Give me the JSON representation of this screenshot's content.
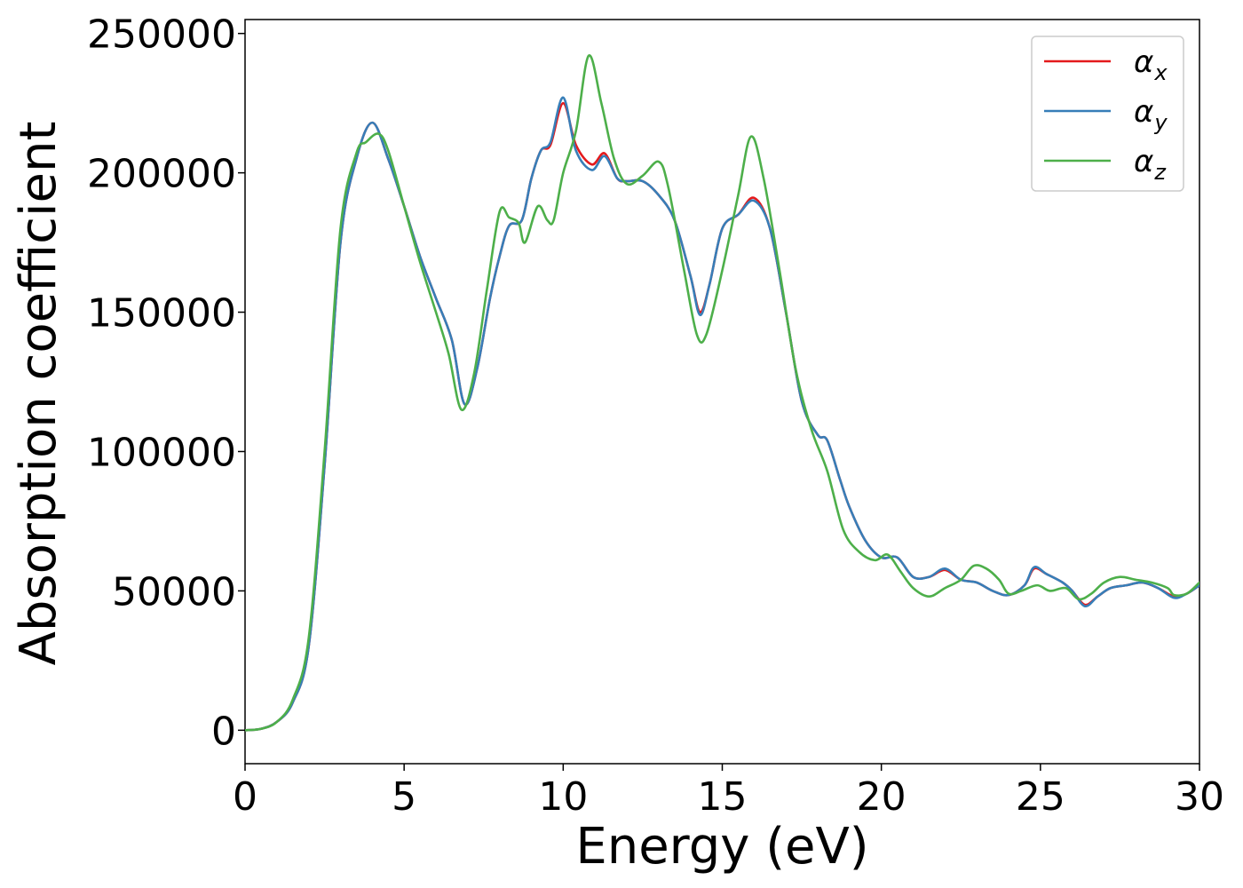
{
  "chart_data": {
    "type": "line",
    "xlabel": "Energy (eV)",
    "ylabel": "Absorption coefficient",
    "xlim": [
      0,
      30
    ],
    "ylim": [
      -12000,
      255000
    ],
    "xticks": [
      0,
      5,
      10,
      15,
      20,
      25,
      30
    ],
    "yticks": [
      0,
      50000,
      100000,
      150000,
      200000,
      250000
    ],
    "grid": false,
    "legend_position": "top-right",
    "series": [
      {
        "name": "α",
        "subscript": "x",
        "color": "#e41a1c",
        "points": [
          [
            0,
            0
          ],
          [
            0.5,
            500
          ],
          [
            1.0,
            3000
          ],
          [
            1.5,
            10000
          ],
          [
            2.0,
            30000
          ],
          [
            2.5,
            95000
          ],
          [
            3.0,
            175000
          ],
          [
            3.5,
            205000
          ],
          [
            4.0,
            218000
          ],
          [
            4.5,
            205000
          ],
          [
            5.0,
            188000
          ],
          [
            5.5,
            170000
          ],
          [
            6.0,
            155000
          ],
          [
            6.5,
            140000
          ],
          [
            6.9,
            117000
          ],
          [
            7.3,
            130000
          ],
          [
            7.7,
            155000
          ],
          [
            8.0,
            170000
          ],
          [
            8.3,
            181000
          ],
          [
            8.7,
            183000
          ],
          [
            9.0,
            198000
          ],
          [
            9.3,
            208000
          ],
          [
            9.6,
            210000
          ],
          [
            10.0,
            225000
          ],
          [
            10.4,
            210000
          ],
          [
            10.9,
            203000
          ],
          [
            11.3,
            207000
          ],
          [
            11.7,
            198000
          ],
          [
            12.0,
            197000
          ],
          [
            12.5,
            197000
          ],
          [
            13.0,
            192000
          ],
          [
            13.5,
            183000
          ],
          [
            14.0,
            163000
          ],
          [
            14.3,
            150000
          ],
          [
            14.6,
            160000
          ],
          [
            15.0,
            180000
          ],
          [
            15.5,
            185000
          ],
          [
            16.0,
            191000
          ],
          [
            16.5,
            180000
          ],
          [
            17.0,
            150000
          ],
          [
            17.5,
            118000
          ],
          [
            18.0,
            106000
          ],
          [
            18.3,
            104000
          ],
          [
            18.7,
            90000
          ],
          [
            19.0,
            80000
          ],
          [
            19.5,
            68000
          ],
          [
            20.0,
            62000
          ],
          [
            20.5,
            62000
          ],
          [
            21.0,
            55000
          ],
          [
            21.5,
            55000
          ],
          [
            22.0,
            57500
          ],
          [
            22.5,
            54000
          ],
          [
            23.0,
            53000
          ],
          [
            23.5,
            50000
          ],
          [
            24.0,
            48500
          ],
          [
            24.5,
            52000
          ],
          [
            24.8,
            58000
          ],
          [
            25.2,
            56000
          ],
          [
            25.7,
            53000
          ],
          [
            26.0,
            50000
          ],
          [
            26.4,
            45000
          ],
          [
            26.8,
            48000
          ],
          [
            27.2,
            51000
          ],
          [
            27.7,
            52000
          ],
          [
            28.2,
            53000
          ],
          [
            28.7,
            51000
          ],
          [
            29.2,
            48000
          ],
          [
            29.6,
            49000
          ],
          [
            30.0,
            52000
          ]
        ]
      },
      {
        "name": "α",
        "subscript": "y",
        "color": "#377eb8",
        "points": [
          [
            0,
            0
          ],
          [
            0.5,
            500
          ],
          [
            1.0,
            3000
          ],
          [
            1.5,
            10000
          ],
          [
            2.0,
            30000
          ],
          [
            2.5,
            95000
          ],
          [
            3.0,
            175000
          ],
          [
            3.5,
            205000
          ],
          [
            4.0,
            218000
          ],
          [
            4.5,
            205000
          ],
          [
            5.0,
            188000
          ],
          [
            5.5,
            170000
          ],
          [
            6.0,
            155000
          ],
          [
            6.5,
            140000
          ],
          [
            6.9,
            117000
          ],
          [
            7.3,
            130000
          ],
          [
            7.7,
            155000
          ],
          [
            8.0,
            170000
          ],
          [
            8.3,
            181000
          ],
          [
            8.7,
            183000
          ],
          [
            9.0,
            198000
          ],
          [
            9.3,
            208000
          ],
          [
            9.6,
            211000
          ],
          [
            10.0,
            227000
          ],
          [
            10.4,
            208000
          ],
          [
            10.9,
            201000
          ],
          [
            11.3,
            206000
          ],
          [
            11.7,
            198000
          ],
          [
            12.0,
            197000
          ],
          [
            12.5,
            197000
          ],
          [
            13.0,
            192000
          ],
          [
            13.5,
            183000
          ],
          [
            14.0,
            163000
          ],
          [
            14.3,
            149000
          ],
          [
            14.6,
            160000
          ],
          [
            15.0,
            180000
          ],
          [
            15.5,
            185000
          ],
          [
            16.0,
            190000
          ],
          [
            16.5,
            180000
          ],
          [
            17.0,
            150000
          ],
          [
            17.5,
            118000
          ],
          [
            18.0,
            106000
          ],
          [
            18.3,
            104000
          ],
          [
            18.7,
            90000
          ],
          [
            19.0,
            80000
          ],
          [
            19.5,
            68000
          ],
          [
            20.0,
            62000
          ],
          [
            20.5,
            62000
          ],
          [
            21.0,
            55000
          ],
          [
            21.5,
            55000
          ],
          [
            22.0,
            58000
          ],
          [
            22.5,
            54000
          ],
          [
            23.0,
            53000
          ],
          [
            23.5,
            50000
          ],
          [
            24.0,
            48500
          ],
          [
            24.5,
            52000
          ],
          [
            24.8,
            58500
          ],
          [
            25.2,
            56000
          ],
          [
            25.7,
            53000
          ],
          [
            26.0,
            50000
          ],
          [
            26.4,
            44500
          ],
          [
            26.8,
            48000
          ],
          [
            27.2,
            51000
          ],
          [
            27.7,
            52000
          ],
          [
            28.2,
            53000
          ],
          [
            28.7,
            51000
          ],
          [
            29.2,
            47500
          ],
          [
            29.6,
            49000
          ],
          [
            30.0,
            52000
          ]
        ]
      },
      {
        "name": "α",
        "subscript": "z",
        "color": "#4daf4a",
        "points": [
          [
            0,
            0
          ],
          [
            0.5,
            500
          ],
          [
            1.0,
            3000
          ],
          [
            1.5,
            11000
          ],
          [
            2.0,
            33000
          ],
          [
            2.5,
            100000
          ],
          [
            3.0,
            180000
          ],
          [
            3.5,
            207000
          ],
          [
            3.8,
            211000
          ],
          [
            4.2,
            214000
          ],
          [
            4.5,
            208000
          ],
          [
            5.0,
            188000
          ],
          [
            5.5,
            168000
          ],
          [
            6.0,
            150000
          ],
          [
            6.4,
            135000
          ],
          [
            6.8,
            115000
          ],
          [
            7.2,
            128000
          ],
          [
            7.6,
            158000
          ],
          [
            8.0,
            186000
          ],
          [
            8.3,
            184000
          ],
          [
            8.6,
            182000
          ],
          [
            8.8,
            175000
          ],
          [
            9.2,
            188000
          ],
          [
            9.5,
            183000
          ],
          [
            9.7,
            183000
          ],
          [
            10.0,
            200000
          ],
          [
            10.4,
            215000
          ],
          [
            10.8,
            242000
          ],
          [
            11.2,
            225000
          ],
          [
            11.6,
            205000
          ],
          [
            12.0,
            196000
          ],
          [
            12.5,
            199000
          ],
          [
            13.0,
            204000
          ],
          [
            13.3,
            195000
          ],
          [
            13.8,
            165000
          ],
          [
            14.2,
            142000
          ],
          [
            14.5,
            142000
          ],
          [
            15.0,
            165000
          ],
          [
            15.5,
            192000
          ],
          [
            15.9,
            213000
          ],
          [
            16.3,
            198000
          ],
          [
            16.8,
            165000
          ],
          [
            17.3,
            130000
          ],
          [
            17.8,
            108000
          ],
          [
            18.3,
            93000
          ],
          [
            18.8,
            72000
          ],
          [
            19.3,
            64000
          ],
          [
            19.8,
            61000
          ],
          [
            20.2,
            63000
          ],
          [
            20.6,
            57000
          ],
          [
            21.0,
            51000
          ],
          [
            21.5,
            48000
          ],
          [
            22.0,
            51000
          ],
          [
            22.5,
            54000
          ],
          [
            22.9,
            59000
          ],
          [
            23.3,
            58000
          ],
          [
            23.7,
            54000
          ],
          [
            24.0,
            49000
          ],
          [
            24.4,
            50000
          ],
          [
            24.9,
            52000
          ],
          [
            25.3,
            50000
          ],
          [
            25.8,
            51000
          ],
          [
            26.2,
            47000
          ],
          [
            26.6,
            49000
          ],
          [
            27.0,
            53000
          ],
          [
            27.5,
            55000
          ],
          [
            28.0,
            54000
          ],
          [
            28.5,
            53000
          ],
          [
            29.0,
            51000
          ],
          [
            29.2,
            48500
          ],
          [
            29.6,
            49000
          ],
          [
            30.0,
            53000
          ]
        ]
      }
    ]
  }
}
